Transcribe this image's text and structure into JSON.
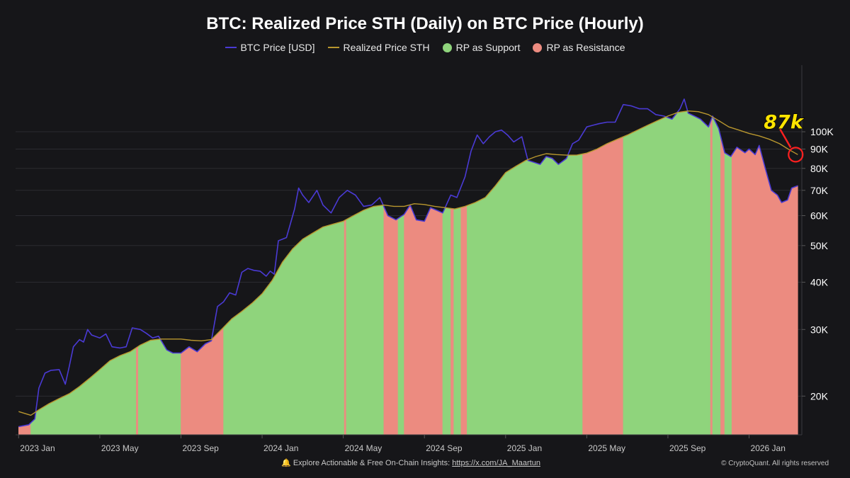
{
  "chart_data": {
    "type": "area",
    "title": "BTC: Realized Price STH (Daily) on BTC Price (Hourly)",
    "y_scale": "log",
    "ylim": [
      15800,
      150000
    ],
    "x_ticks": [
      "2023 Jan",
      "2023 May",
      "2023 Sep",
      "2024 Jan",
      "2024 May",
      "2024 Sep",
      "2025 Jan",
      "2025 May",
      "2025 Sep",
      "2026 Jan"
    ],
    "x_tick_months": [
      0,
      4,
      8,
      12,
      16,
      20,
      24,
      28,
      32,
      36
    ],
    "x_range_months": [
      -0.15,
      38.6
    ],
    "y_ticks": [
      {
        "value": 20000,
        "label": "20K"
      },
      {
        "value": 30000,
        "label": "30K"
      },
      {
        "value": 40000,
        "label": "40K"
      },
      {
        "value": 50000,
        "label": "50K"
      },
      {
        "value": 60000,
        "label": "60K"
      },
      {
        "value": 70000,
        "label": "70K"
      },
      {
        "value": 80000,
        "label": "80K"
      },
      {
        "value": 90000,
        "label": "90K"
      },
      {
        "value": 100000,
        "label": "100K"
      }
    ],
    "legend": [
      {
        "name": "BTC Price [USD]",
        "type": "line",
        "color": "#4a3ad4"
      },
      {
        "name": "Realized Price STH",
        "type": "line",
        "color": "#b8962e"
      },
      {
        "name": "RP as Support",
        "type": "dot",
        "color": "#8fd47c"
      },
      {
        "name": "RP as Resistance",
        "type": "dot",
        "color": "#ec8b80"
      }
    ],
    "series": [
      {
        "name": "BTC Price [USD]",
        "x_months": [
          0,
          0.5,
          0.8,
          1.0,
          1.3,
          1.6,
          2.0,
          2.3,
          2.5,
          2.7,
          3.0,
          3.2,
          3.4,
          3.6,
          4.0,
          4.3,
          4.6,
          5.0,
          5.3,
          5.6,
          6.0,
          6.3,
          6.6,
          6.9,
          7.3,
          7.6,
          8.0,
          8.4,
          8.8,
          9.2,
          9.5,
          9.8,
          10.1,
          10.4,
          10.7,
          11.0,
          11.3,
          11.6,
          11.9,
          12.2,
          12.4,
          12.6,
          12.8,
          13.2,
          13.6,
          13.8,
          14.0,
          14.3,
          14.7,
          15.0,
          15.4,
          15.8,
          16.2,
          16.6,
          17.0,
          17.4,
          17.8,
          18.2,
          18.6,
          19.0,
          19.3,
          19.6,
          20.0,
          20.3,
          20.6,
          20.9,
          21.3,
          21.6,
          22.0,
          22.3,
          22.6,
          22.9,
          23.2,
          23.5,
          23.8,
          24.1,
          24.4,
          24.8,
          25.1,
          25.4,
          25.7,
          26.0,
          26.3,
          26.6,
          27.0,
          27.3,
          27.6,
          28.0,
          28.3,
          28.6,
          29.0,
          29.4,
          29.8,
          30.2,
          30.6,
          31.0,
          31.4,
          31.8,
          32.2,
          32.6,
          32.8,
          33.0,
          33.3,
          33.6,
          34.0,
          34.2,
          34.5,
          34.8,
          35.1,
          35.4,
          35.8,
          36.0,
          36.3,
          36.5,
          36.8,
          37.1,
          37.4,
          37.6,
          37.9,
          38.1,
          38.4
        ],
        "values": [
          16600,
          16800,
          17400,
          21000,
          23000,
          23400,
          23500,
          21500,
          24000,
          27000,
          28200,
          27800,
          30000,
          29000,
          28500,
          29200,
          27000,
          26800,
          27000,
          30300,
          30000,
          29300,
          28500,
          28800,
          26500,
          26000,
          26000,
          27000,
          26200,
          27500,
          28000,
          34500,
          35500,
          37500,
          37000,
          42500,
          43500,
          43000,
          42800,
          41500,
          42800,
          42000,
          51500,
          52500,
          62500,
          71000,
          68000,
          65000,
          70000,
          64000,
          61000,
          67000,
          70000,
          68000,
          63500,
          64000,
          67000,
          60000,
          58500,
          60500,
          64000,
          58500,
          58000,
          63000,
          62000,
          61000,
          68000,
          67000,
          76000,
          89000,
          98000,
          93000,
          97000,
          100000,
          101000,
          98000,
          94000,
          97000,
          84000,
          83000,
          82000,
          86000,
          85000,
          82000,
          85000,
          93000,
          95000,
          103000,
          104000,
          105000,
          106000,
          106000,
          118000,
          117000,
          115000,
          115000,
          111000,
          110000,
          108000,
          115000,
          122000,
          112000,
          110000,
          108000,
          103000,
          110000,
          102000,
          88000,
          86000,
          91000,
          88000,
          90000,
          87000,
          92000,
          80000,
          70000,
          68000,
          65000,
          66000,
          71000,
          72000
        ]
      },
      {
        "name": "Realized Price STH",
        "x_months": [
          0,
          0.6,
          1.0,
          1.5,
          2.0,
          2.5,
          3.0,
          3.5,
          4.0,
          4.5,
          5.0,
          5.5,
          6.0,
          6.5,
          7.0,
          7.5,
          8.0,
          8.5,
          9.0,
          9.5,
          10.0,
          10.5,
          11.0,
          11.5,
          12.0,
          12.5,
          13.0,
          13.5,
          14.0,
          14.5,
          15.0,
          15.5,
          16.0,
          16.5,
          17.0,
          17.5,
          18.0,
          18.5,
          19.0,
          19.5,
          20.0,
          20.5,
          21.0,
          21.5,
          22.0,
          22.5,
          23.0,
          23.5,
          24.0,
          24.5,
          25.0,
          25.5,
          26.0,
          26.5,
          27.0,
          27.5,
          28.0,
          28.5,
          29.0,
          29.5,
          30.0,
          30.5,
          31.0,
          31.5,
          32.0,
          32.5,
          33.0,
          33.5,
          34.0,
          34.5,
          35.0,
          35.5,
          36.0,
          36.5,
          37.0,
          37.5,
          38.0,
          38.4
        ],
        "values": [
          18200,
          17800,
          18400,
          19100,
          19700,
          20300,
          21200,
          22300,
          23500,
          24800,
          25600,
          26200,
          27300,
          28100,
          28300,
          28300,
          28300,
          28100,
          28000,
          28200,
          30000,
          32000,
          33500,
          35200,
          37300,
          40500,
          45200,
          49000,
          52000,
          54000,
          56000,
          57000,
          58000,
          60000,
          62000,
          63500,
          64000,
          63500,
          63500,
          64500,
          64200,
          63500,
          63000,
          62500,
          63500,
          65000,
          67000,
          72000,
          78000,
          81000,
          84000,
          86000,
          87500,
          87000,
          86700,
          86700,
          87800,
          90000,
          93000,
          95500,
          98000,
          101000,
          104000,
          107000,
          110000,
          112500,
          113500,
          113000,
          111000,
          107000,
          103000,
          101000,
          99000,
          97500,
          95500,
          93000,
          89500,
          87000
        ]
      }
    ],
    "fill": {
      "default_regime": "RP as Support",
      "resistance_intervals_months": [
        [
          0,
          0.6
        ],
        [
          5.8,
          5.9
        ],
        [
          8.0,
          10.1
        ],
        [
          16.05,
          16.15
        ],
        [
          18.0,
          18.7
        ],
        [
          19.0,
          20.9
        ],
        [
          21.3,
          21.45
        ],
        [
          21.8,
          22.1
        ],
        [
          27.8,
          29.8
        ],
        [
          34.1,
          34.2
        ],
        [
          34.6,
          34.8
        ],
        [
          35.15,
          38.4
        ]
      ]
    },
    "annotations": [
      {
        "text": "87k",
        "target_month": 38.4,
        "target_value": 87000,
        "color": "#ffe400",
        "marker": "circle",
        "marker_color": "#ff2020"
      }
    ]
  },
  "footer": {
    "bell_icon": "🔔",
    "note": "Explore Actionable & Free On-Chain Insights:",
    "link": "https://x.com/JA_Maartun",
    "copyright": "© CryptoQuant. All rights reserved"
  }
}
